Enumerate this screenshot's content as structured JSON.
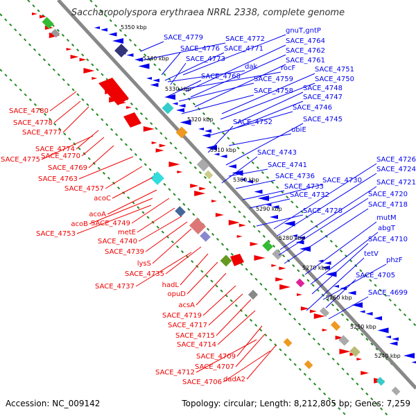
{
  "title": "Saccharopolyspora erythraea NRRL 2338, complete genome",
  "footer": {
    "accession": "Accession: NC_009142",
    "summary": "Topology: circular; Length: 8,212,805 bp; Genes: 7,259"
  },
  "colors": {
    "forward": "#ee0000",
    "reverse": "#0000ee",
    "axis": "#888888",
    "dotted": "#228822"
  },
  "kbp_ticks": [
    "5350 kbp",
    "5340 kbp",
    "5330 kbp",
    "5320 kbp",
    "5310 kbp",
    "5300 kbp",
    "5290 kbp",
    "5280 kbp",
    "5270 kbp",
    "5260 kbp",
    "5250 kbp",
    "5240 kbp"
  ],
  "right_labels": [
    "SACE_4779",
    "SACE_4772",
    "gnuT,gntP",
    "SACE_4776",
    "SACE_4771",
    "SACE_4764",
    "SACE_4762",
    "SACE_4773",
    "SACE_4761",
    "dak",
    "rocF",
    "SACE_4768",
    "SACE_4751",
    "SACE_4759",
    "SACE_4750",
    "SACE_4758",
    "SACE_4748",
    "SACE_4747",
    "SACE_4746",
    "SACE_4752",
    "SACE_4745",
    "ubiE",
    "SACE_4743",
    "SACE_4741",
    "SACE_4736",
    "SACE_4733",
    "SACE_4730",
    "SACE_4732",
    "SACE_4726",
    "SACE_4724",
    "SACE_4721",
    "SACE_4720",
    "SACE_4718",
    "SACE_4728",
    "mutM",
    "abgT",
    "SACE_4710",
    "tetV",
    "phzF",
    "SACE_4705",
    "SACE_4699"
  ],
  "left_labels": [
    "SACE_4780",
    "SACE_4778",
    "SACE_4777",
    "SACE_4774",
    "SACE_4775",
    "SACE_4770",
    "SACE_4769",
    "SACE_4763",
    "SACE_4757",
    "acoC",
    "acoA",
    "acoB",
    "SACE_4749",
    "SACE_4753",
    "metE",
    "SACE_4740",
    "SACE_4739",
    "lysS",
    "SACE_4735",
    "SACE_4737",
    "hadL",
    "opuD",
    "acsA",
    "SACE_4719",
    "SACE_4717",
    "SACE_4715",
    "SACE_4714",
    "SACE_4709",
    "SACE_4707",
    "SACE_4712",
    "SACE_4706",
    "dadA2"
  ]
}
